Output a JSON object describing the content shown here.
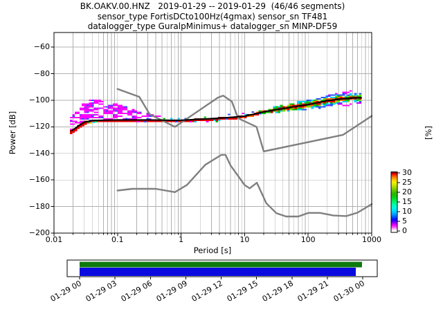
{
  "title": {
    "line1": "BK.OAKV.00.HNZ   2019-01-29 -- 2019-01-29  (46/46 segments)",
    "line2": "sensor_type FortisDCto100Hz(4gmax) sensor_sn TF481",
    "line3": "datalogger_type GuralpMinimus+ datalogger_sn MINP-DF59"
  },
  "axes": {
    "xlabel": "Period [s]",
    "ylabel": "Power [dB]",
    "right_label": "[%]",
    "x_tick_labels": [
      "0.01",
      "0.1",
      "1",
      "10",
      "100",
      "1000"
    ],
    "x_tick_values": [
      0.01,
      0.1,
      1,
      10,
      100,
      1000
    ],
    "y_tick_labels": [
      "−60",
      "−80",
      "−100",
      "−120",
      "−140",
      "−160",
      "−180",
      "−200"
    ],
    "y_tick_values": [
      -60,
      -80,
      -100,
      -120,
      -140,
      -160,
      -180,
      -200
    ],
    "grid_color": "#b0b0b0",
    "spine_color": "#000000"
  },
  "colorbar": {
    "tick_labels": [
      "30",
      "25",
      "20",
      "15",
      "10",
      "5",
      "0"
    ],
    "tick_values": [
      30,
      25,
      20,
      15,
      10,
      5,
      0
    ],
    "label": "[%]",
    "stops": [
      [
        -0.8,
        "#ffffff"
      ],
      [
        0.3,
        "#ffffff"
      ],
      [
        1.2,
        "#ffb3ff"
      ],
      [
        2.2,
        "#ff40ff"
      ],
      [
        3.2,
        "#ee00ff"
      ],
      [
        4.2,
        "#9b00ff"
      ],
      [
        5.2,
        "#3c00ff"
      ],
      [
        6.2,
        "#0014ff"
      ],
      [
        7.6,
        "#0063ff"
      ],
      [
        9.0,
        "#00a8ff"
      ],
      [
        10.5,
        "#00d9ff"
      ],
      [
        12.0,
        "#00f5e1"
      ],
      [
        13.5,
        "#00ffb4"
      ],
      [
        15.0,
        "#00f571"
      ],
      [
        16.5,
        "#00e336"
      ],
      [
        18.0,
        "#0fc900"
      ],
      [
        19.5,
        "#2eb500"
      ],
      [
        21.0,
        "#62c400"
      ],
      [
        22.5,
        "#9cd600"
      ],
      [
        24.0,
        "#d4e800"
      ],
      [
        25.5,
        "#fced00"
      ],
      [
        26.6,
        "#ffc300"
      ],
      [
        27.6,
        "#ff9000"
      ],
      [
        28.4,
        "#ff5a00"
      ],
      [
        29.1,
        "#f02800"
      ],
      [
        29.7,
        "#d40000"
      ],
      [
        30.45,
        "#8b0000"
      ]
    ]
  },
  "chart_data": {
    "type": "heatmap",
    "description": "Probabilistic power spectral density (PPSD) histogram with Peterson NHNM/NLNM reference noise models",
    "x_axis": {
      "label": "Period [s]",
      "scale": "log10",
      "range": [
        0.01,
        1000
      ]
    },
    "y_axis": {
      "label": "Power [dB]",
      "range": [
        -200,
        -49
      ]
    },
    "percent_axis": {
      "label": "[%]",
      "range": [
        0,
        30
      ]
    },
    "data_period_range": [
      0.019,
      700
    ],
    "psd_mode_curve_period_db": [
      [
        0.019,
        -123.0
      ],
      [
        0.024,
        -119.5
      ],
      [
        0.03,
        -116.5
      ],
      [
        0.04,
        -115.3
      ],
      [
        0.06,
        -115.0
      ],
      [
        0.1,
        -114.8
      ],
      [
        0.3,
        -114.8
      ],
      [
        0.7,
        -115.1
      ],
      [
        1.0,
        -115.0
      ],
      [
        2.0,
        -114.3
      ],
      [
        5.0,
        -113.2
      ],
      [
        10.0,
        -112.0
      ],
      [
        20.0,
        -108.7
      ],
      [
        50.0,
        -105.5
      ],
      [
        100.0,
        -103.3
      ],
      [
        200.0,
        -100.3
      ],
      [
        400.0,
        -98.6
      ],
      [
        600.0,
        -98.2
      ],
      [
        700.0,
        -98.2
      ]
    ],
    "cloud_top_period_db": [
      [
        0.019,
        -113
      ],
      [
        0.025,
        -106
      ],
      [
        0.032,
        -100.5
      ],
      [
        0.04,
        -99.5
      ],
      [
        0.05,
        -100
      ],
      [
        0.08,
        -102
      ],
      [
        0.12,
        -104.5
      ],
      [
        0.2,
        -108
      ],
      [
        0.3,
        -110.5
      ],
      [
        0.45,
        -112.5
      ]
    ],
    "noise_models": {
      "color": "#7f7f7f",
      "nhnm_period_db": [
        [
          0.1,
          -91.5
        ],
        [
          0.22,
          -97.4
        ],
        [
          0.32,
          -110.5
        ],
        [
          0.8,
          -120.0
        ],
        [
          3.8,
          -98.0
        ],
        [
          4.6,
          -96.5
        ],
        [
          6.3,
          -101.0
        ],
        [
          7.9,
          -113.5
        ],
        [
          15.4,
          -120.0
        ],
        [
          20.0,
          -138.5
        ],
        [
          354.8,
          -126.0
        ],
        [
          1000,
          -111.8
        ]
      ],
      "nlnm_period_db": [
        [
          0.1,
          -168.0
        ],
        [
          0.17,
          -166.7
        ],
        [
          0.4,
          -166.7
        ],
        [
          0.8,
          -169.2
        ],
        [
          1.24,
          -163.7
        ],
        [
          2.4,
          -148.6
        ],
        [
          4.3,
          -141.1
        ],
        [
          5.0,
          -141.1
        ],
        [
          6.0,
          -149.0
        ],
        [
          10.0,
          -163.8
        ],
        [
          12.0,
          -166.3
        ],
        [
          15.6,
          -162.1
        ],
        [
          21.9,
          -177.5
        ],
        [
          31.6,
          -185.0
        ],
        [
          45.0,
          -187.5
        ],
        [
          70.0,
          -187.5
        ],
        [
          101,
          -184.8
        ],
        [
          154,
          -184.8
        ],
        [
          250,
          -186.8
        ],
        [
          400,
          -187.2
        ],
        [
          600,
          -184.6
        ],
        [
          1000,
          -178.2
        ]
      ]
    },
    "speckle_palette": {
      "core": "#8f0000",
      "off1": [
        "#e60000",
        "#ff6a00",
        "#00c300"
      ],
      "off2": [
        "#00c300",
        "#93dc00",
        "#00cfff"
      ],
      "off3": [
        "#00cfff",
        "#2653ff"
      ],
      "off4": [
        "#2653ff",
        "#cc00ff"
      ],
      "off5": [
        "#ff00ff"
      ],
      "mid": [
        "#00c300",
        "#00cfff",
        "#ff00ff",
        "#2653ff"
      ],
      "cloud_main": "#ff00ff",
      "cloud_alt": [
        "#8a2bff",
        "#2653ff"
      ],
      "mode_line": "#000000",
      "extra_cells_period_db_color": [
        [
          0.035,
          -116.5,
          "#00cc00"
        ],
        [
          0.038,
          -117.2,
          "#ffe800"
        ],
        [
          0.042,
          -116.6,
          "#00e5ff"
        ],
        [
          0.046,
          -116.2,
          "#00cc00"
        ]
      ]
    }
  },
  "timeline": {
    "tick_labels": [
      "01-29 00",
      "01-29 03",
      "01-29 06",
      "01-29 09",
      "01-29 12",
      "01-29 15",
      "01-29 18",
      "01-29 21",
      "01-30 00"
    ],
    "bars": [
      {
        "name": "data-extent-bar",
        "color": "#0e7a0e",
        "frac_start": 0.0,
        "frac_end": 0.998
      },
      {
        "name": "used-segments-bar",
        "color": "#0a0ae0",
        "frac_start": 0.0,
        "frac_end": 0.976
      }
    ]
  }
}
